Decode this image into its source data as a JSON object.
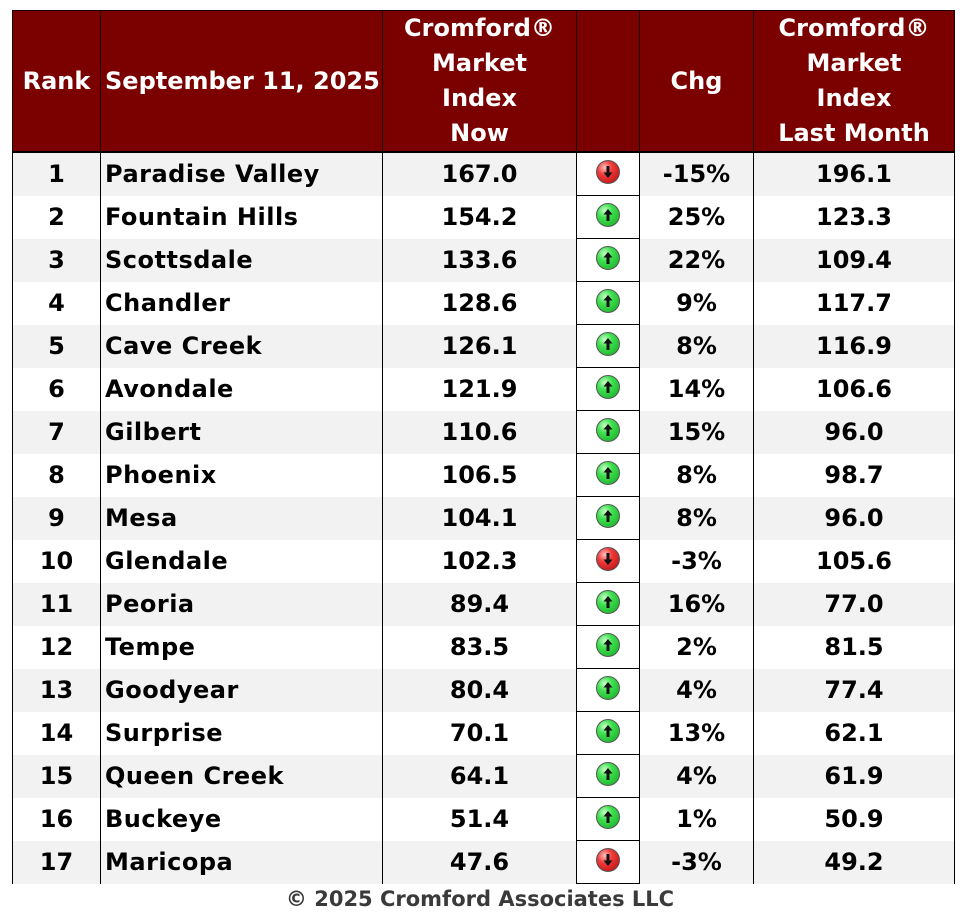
{
  "table": {
    "headers": {
      "rank": "Rank",
      "date": "September 11, 2025",
      "now": [
        "Cromford®",
        "Market",
        "Index",
        "Now"
      ],
      "arrow": "",
      "chg": "Chg",
      "last": [
        "Cromford®",
        "Market",
        "Index",
        "Last Month"
      ]
    },
    "rows": [
      {
        "rank": "1",
        "city": "Paradise Valley",
        "now": "167.0",
        "direction": "down",
        "chg": "-15%",
        "last": "196.1"
      },
      {
        "rank": "2",
        "city": "Fountain Hills",
        "now": "154.2",
        "direction": "up",
        "chg": "25%",
        "last": "123.3"
      },
      {
        "rank": "3",
        "city": "Scottsdale",
        "now": "133.6",
        "direction": "up",
        "chg": "22%",
        "last": "109.4"
      },
      {
        "rank": "4",
        "city": "Chandler",
        "now": "128.6",
        "direction": "up",
        "chg": "9%",
        "last": "117.7"
      },
      {
        "rank": "5",
        "city": "Cave Creek",
        "now": "126.1",
        "direction": "up",
        "chg": "8%",
        "last": "116.9"
      },
      {
        "rank": "6",
        "city": "Avondale",
        "now": "121.9",
        "direction": "up",
        "chg": "14%",
        "last": "106.6"
      },
      {
        "rank": "7",
        "city": "Gilbert",
        "now": "110.6",
        "direction": "up",
        "chg": "15%",
        "last": "96.0"
      },
      {
        "rank": "8",
        "city": "Phoenix",
        "now": "106.5",
        "direction": "up",
        "chg": "8%",
        "last": "98.7"
      },
      {
        "rank": "9",
        "city": "Mesa",
        "now": "104.1",
        "direction": "up",
        "chg": "8%",
        "last": "96.0"
      },
      {
        "rank": "10",
        "city": "Glendale",
        "now": "102.3",
        "direction": "down",
        "chg": "-3%",
        "last": "105.6"
      },
      {
        "rank": "11",
        "city": "Peoria",
        "now": "89.4",
        "direction": "up",
        "chg": "16%",
        "last": "77.0"
      },
      {
        "rank": "12",
        "city": "Tempe",
        "now": "83.5",
        "direction": "up",
        "chg": "2%",
        "last": "81.5"
      },
      {
        "rank": "13",
        "city": "Goodyear",
        "now": "80.4",
        "direction": "up",
        "chg": "4%",
        "last": "77.4"
      },
      {
        "rank": "14",
        "city": "Surprise",
        "now": "70.1",
        "direction": "up",
        "chg": "13%",
        "last": "62.1"
      },
      {
        "rank": "15",
        "city": "Queen Creek",
        "now": "64.1",
        "direction": "up",
        "chg": "4%",
        "last": "61.9"
      },
      {
        "rank": "16",
        "city": "Buckeye",
        "now": "51.4",
        "direction": "up",
        "chg": "1%",
        "last": "50.9"
      },
      {
        "rank": "17",
        "city": "Maricopa",
        "now": "47.6",
        "direction": "down",
        "chg": "-3%",
        "last": "49.2"
      }
    ]
  },
  "icons": {
    "up": "green-up-arrow-icon",
    "down": "red-down-arrow-icon"
  },
  "colors": {
    "header_bg": "#7b0000",
    "header_text": "#ffffff",
    "up": "#1fc22f",
    "down": "#e02020"
  },
  "footer": "© 2025 Cromford Associates LLC"
}
